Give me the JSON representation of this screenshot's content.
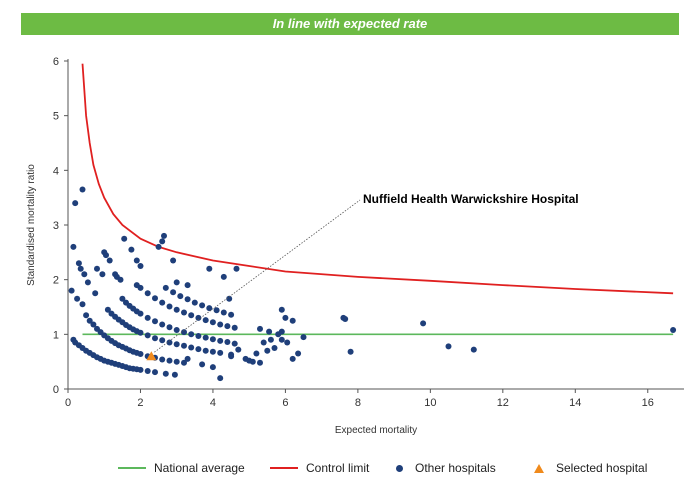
{
  "banner": {
    "text": "In line with expected rate",
    "color": "#6dbb44"
  },
  "chart_data": {
    "type": "scatter",
    "xlabel": "Expected mortality",
    "ylabel": "Standardised mortality ratio",
    "xlim": [
      0,
      17
    ],
    "ylim": [
      0,
      6
    ],
    "xticks": [
      0,
      2,
      4,
      6,
      8,
      10,
      12,
      14,
      16
    ],
    "yticks": [
      0,
      1,
      2,
      3,
      4,
      5,
      6
    ],
    "annotation": {
      "text": "Nuffield Health Warwickshire Hospital",
      "x": 2.3,
      "y": 0.6
    },
    "national_average": {
      "name": "National average",
      "y": 1,
      "color": "#5cb85c"
    },
    "control_limit": {
      "name": "Control limit",
      "color": "#e02020",
      "points": [
        [
          0.4,
          5.95
        ],
        [
          0.5,
          5.0
        ],
        [
          0.6,
          4.5
        ],
        [
          0.7,
          4.1
        ],
        [
          0.85,
          3.75
        ],
        [
          1,
          3.5
        ],
        [
          1.25,
          3.2
        ],
        [
          1.5,
          3.0
        ],
        [
          2,
          2.75
        ],
        [
          2.5,
          2.6
        ],
        [
          3,
          2.5
        ],
        [
          4,
          2.35
        ],
        [
          5,
          2.25
        ],
        [
          6,
          2.15
        ],
        [
          8,
          2.05
        ],
        [
          10,
          1.98
        ],
        [
          12,
          1.9
        ],
        [
          14,
          1.83
        ],
        [
          16.7,
          1.75
        ]
      ]
    },
    "series": [
      {
        "name": "Other hospitals",
        "color": "#1f3f7a",
        "points": [
          [
            0.1,
            1.8
          ],
          [
            0.15,
            2.6
          ],
          [
            0.2,
            3.4
          ],
          [
            0.4,
            3.65
          ],
          [
            0.3,
            2.3
          ],
          [
            0.35,
            2.2
          ],
          [
            0.25,
            1.65
          ],
          [
            0.4,
            1.55
          ],
          [
            0.45,
            2.1
          ],
          [
            0.55,
            1.95
          ],
          [
            0.75,
            1.75
          ],
          [
            0.8,
            2.2
          ],
          [
            1.0,
            2.5
          ],
          [
            1.05,
            2.45
          ],
          [
            1.15,
            2.35
          ],
          [
            0.95,
            2.1
          ],
          [
            1.3,
            2.1
          ],
          [
            1.35,
            2.05
          ],
          [
            1.45,
            2.0
          ],
          [
            1.55,
            2.75
          ],
          [
            1.75,
            2.55
          ],
          [
            1.9,
            2.35
          ],
          [
            2.0,
            2.25
          ],
          [
            2.5,
            2.6
          ],
          [
            2.6,
            2.7
          ],
          [
            2.65,
            2.8
          ],
          [
            2.9,
            2.35
          ],
          [
            3.0,
            1.95
          ],
          [
            3.3,
            1.9
          ],
          [
            3.9,
            2.2
          ],
          [
            4.3,
            2.05
          ],
          [
            4.65,
            2.2
          ],
          [
            0.15,
            0.9
          ],
          [
            0.2,
            0.85
          ],
          [
            0.3,
            0.8
          ],
          [
            0.4,
            0.75
          ],
          [
            0.5,
            0.7
          ],
          [
            0.6,
            0.66
          ],
          [
            0.7,
            0.62
          ],
          [
            0.8,
            0.58
          ],
          [
            0.9,
            0.55
          ],
          [
            1.0,
            0.52
          ],
          [
            1.1,
            0.5
          ],
          [
            1.2,
            0.48
          ],
          [
            1.3,
            0.46
          ],
          [
            1.4,
            0.44
          ],
          [
            1.5,
            0.42
          ],
          [
            1.6,
            0.4
          ],
          [
            1.7,
            0.38
          ],
          [
            1.8,
            0.37
          ],
          [
            1.9,
            0.36
          ],
          [
            2.0,
            0.35
          ],
          [
            2.2,
            0.33
          ],
          [
            2.4,
            0.31
          ],
          [
            2.7,
            0.28
          ],
          [
            2.95,
            0.26
          ],
          [
            0.5,
            1.35
          ],
          [
            0.6,
            1.25
          ],
          [
            0.7,
            1.18
          ],
          [
            0.8,
            1.1
          ],
          [
            0.9,
            1.04
          ],
          [
            1.0,
            0.98
          ],
          [
            1.1,
            0.93
          ],
          [
            1.2,
            0.88
          ],
          [
            1.3,
            0.84
          ],
          [
            1.4,
            0.8
          ],
          [
            1.5,
            0.77
          ],
          [
            1.6,
            0.74
          ],
          [
            1.7,
            0.71
          ],
          [
            1.8,
            0.68
          ],
          [
            1.9,
            0.66
          ],
          [
            2.0,
            0.64
          ],
          [
            2.2,
            0.6
          ],
          [
            2.4,
            0.57
          ],
          [
            2.6,
            0.54
          ],
          [
            2.8,
            0.52
          ],
          [
            3.0,
            0.5
          ],
          [
            3.2,
            0.48
          ],
          [
            1.1,
            1.45
          ],
          [
            1.2,
            1.38
          ],
          [
            1.3,
            1.32
          ],
          [
            1.4,
            1.27
          ],
          [
            1.5,
            1.22
          ],
          [
            1.6,
            1.17
          ],
          [
            1.7,
            1.13
          ],
          [
            1.8,
            1.09
          ],
          [
            1.9,
            1.06
          ],
          [
            2.0,
            1.03
          ],
          [
            2.2,
            0.98
          ],
          [
            2.4,
            0.93
          ],
          [
            2.6,
            0.89
          ],
          [
            2.8,
            0.85
          ],
          [
            3.0,
            0.82
          ],
          [
            3.2,
            0.79
          ],
          [
            3.4,
            0.76
          ],
          [
            3.6,
            0.73
          ],
          [
            3.8,
            0.7
          ],
          [
            4.0,
            0.68
          ],
          [
            4.2,
            0.66
          ],
          [
            4.5,
            0.63
          ],
          [
            1.5,
            1.65
          ],
          [
            1.6,
            1.58
          ],
          [
            1.7,
            1.52
          ],
          [
            1.8,
            1.47
          ],
          [
            1.9,
            1.42
          ],
          [
            2.0,
            1.38
          ],
          [
            2.2,
            1.3
          ],
          [
            2.4,
            1.24
          ],
          [
            2.6,
            1.18
          ],
          [
            2.8,
            1.13
          ],
          [
            3.0,
            1.08
          ],
          [
            3.2,
            1.04
          ],
          [
            3.4,
            1.0
          ],
          [
            3.6,
            0.97
          ],
          [
            3.8,
            0.94
          ],
          [
            4.0,
            0.91
          ],
          [
            4.2,
            0.88
          ],
          [
            4.4,
            0.86
          ],
          [
            4.6,
            0.83
          ],
          [
            1.9,
            1.9
          ],
          [
            2.0,
            1.85
          ],
          [
            2.2,
            1.75
          ],
          [
            2.4,
            1.66
          ],
          [
            2.6,
            1.58
          ],
          [
            2.8,
            1.51
          ],
          [
            3.0,
            1.45
          ],
          [
            3.2,
            1.4
          ],
          [
            3.4,
            1.35
          ],
          [
            3.6,
            1.3
          ],
          [
            3.8,
            1.26
          ],
          [
            4.0,
            1.22
          ],
          [
            4.2,
            1.18
          ],
          [
            4.4,
            1.15
          ],
          [
            4.6,
            1.12
          ],
          [
            2.7,
            1.85
          ],
          [
            2.9,
            1.77
          ],
          [
            3.1,
            1.7
          ],
          [
            3.3,
            1.64
          ],
          [
            3.5,
            1.58
          ],
          [
            3.7,
            1.53
          ],
          [
            3.9,
            1.48
          ],
          [
            4.1,
            1.44
          ],
          [
            4.3,
            1.4
          ],
          [
            4.5,
            1.36
          ],
          [
            4.45,
            1.65
          ],
          [
            3.3,
            0.55
          ],
          [
            3.7,
            0.45
          ],
          [
            4.0,
            0.4
          ],
          [
            4.2,
            0.2
          ],
          [
            4.5,
            0.6
          ],
          [
            4.7,
            0.72
          ],
          [
            4.9,
            0.55
          ],
          [
            5.0,
            0.52
          ],
          [
            5.1,
            0.5
          ],
          [
            5.3,
            0.48
          ],
          [
            5.2,
            0.65
          ],
          [
            5.5,
            0.7
          ],
          [
            5.3,
            1.1
          ],
          [
            5.4,
            0.85
          ],
          [
            5.55,
            1.05
          ],
          [
            5.6,
            0.9
          ],
          [
            5.7,
            0.75
          ],
          [
            5.8,
            1.0
          ],
          [
            5.9,
            1.05
          ],
          [
            5.9,
            0.9
          ],
          [
            6.0,
            1.3
          ],
          [
            6.05,
            0.85
          ],
          [
            6.2,
            1.25
          ],
          [
            6.2,
            0.55
          ],
          [
            6.35,
            0.65
          ],
          [
            6.5,
            0.95
          ],
          [
            5.9,
            1.45
          ],
          [
            7.6,
            1.3
          ],
          [
            7.65,
            1.28
          ],
          [
            7.8,
            0.68
          ],
          [
            9.8,
            1.2
          ],
          [
            10.5,
            0.78
          ],
          [
            11.2,
            0.72
          ],
          [
            16.7,
            1.08
          ]
        ]
      },
      {
        "name": "Selected hospital",
        "color": "#f08a1c",
        "points": [
          [
            2.3,
            0.6
          ]
        ]
      }
    ],
    "legend_placement": "bottom"
  }
}
